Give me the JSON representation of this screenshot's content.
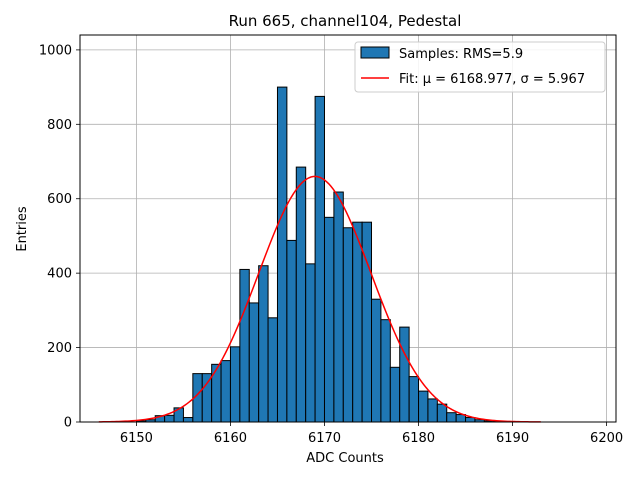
{
  "chart_data": {
    "type": "histogram",
    "title": "Run 665, channel104, Pedestal",
    "xlabel": "ADC Counts",
    "ylabel": "Entries",
    "xlim": [
      6144,
      6201
    ],
    "ylim": [
      0,
      1040
    ],
    "x_ticks": [
      6150,
      6160,
      6170,
      6180,
      6190,
      6200
    ],
    "y_ticks": [
      0,
      200,
      400,
      600,
      800,
      1000
    ],
    "grid": true,
    "bin_start": 6150,
    "bin_width": 1,
    "bar_color": "#1f77b4",
    "bar_edge_color": "#000000",
    "values": [
      3,
      6,
      17,
      18,
      38,
      12,
      130,
      130,
      155,
      165,
      202,
      410,
      320,
      420,
      280,
      900,
      488,
      685,
      425,
      875,
      550,
      618,
      522,
      537,
      537,
      330,
      275,
      147,
      255,
      122,
      83,
      62,
      48,
      25,
      20,
      12,
      6,
      3,
      2,
      1
    ],
    "fit": {
      "label_prefix": "Fit: ",
      "mu": 6168.977,
      "sigma": 5.967,
      "amplitude": 660,
      "x_range": [
        6146,
        6193
      ],
      "color": "#ff0000"
    },
    "legend": {
      "position": "top-right",
      "entries": [
        {
          "kind": "bar",
          "label": "Samples: RMS=5.9"
        },
        {
          "kind": "line",
          "label_text": "Fit: μ = 6168.977, σ = 5.967"
        }
      ]
    }
  }
}
